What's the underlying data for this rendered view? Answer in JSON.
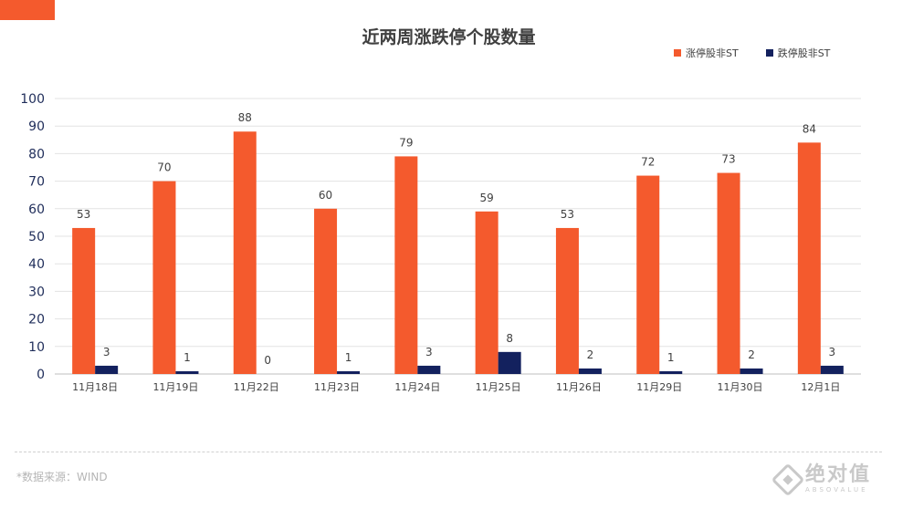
{
  "brand_color": "#F45A2D",
  "source_note": "*数据来源：WIND",
  "watermark": {
    "brand": "绝对值",
    "sub": "ABSOVALUE",
    "icon": "absovalue-logo-icon"
  },
  "chart_data": {
    "type": "bar",
    "title": "近两周涨跌停个股数量",
    "xlabel": "",
    "ylabel": "",
    "ylim": [
      0,
      100
    ],
    "yticks": [
      0,
      10,
      20,
      30,
      40,
      50,
      60,
      70,
      80,
      90,
      100
    ],
    "grid": true,
    "legend_position": "top-right",
    "categories": [
      "11月18日",
      "11月19日",
      "11月22日",
      "11月23日",
      "11月24日",
      "11月25日",
      "11月26日",
      "11月29日",
      "11月30日",
      "12月1日"
    ],
    "series": [
      {
        "name": "涨停股非ST",
        "color": "#F45A2D",
        "values": [
          53,
          70,
          88,
          60,
          79,
          59,
          53,
          72,
          73,
          84
        ]
      },
      {
        "name": "跌停股非ST",
        "color": "#13215E",
        "values": [
          3,
          1,
          0,
          1,
          3,
          8,
          2,
          1,
          2,
          3
        ]
      }
    ]
  }
}
